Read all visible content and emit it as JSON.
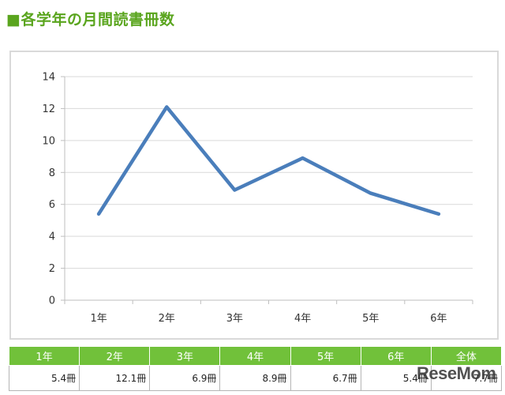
{
  "title": "■各学年の月間読書冊数",
  "colors": {
    "title": "#5aa51e",
    "line": "#4a7ebb",
    "header_bg": "#71c13a",
    "grid": "#d9d9d9",
    "axis": "#bfbfbf"
  },
  "chart_data": {
    "type": "line",
    "title": "",
    "xlabel": "",
    "ylabel": "",
    "categories": [
      "1年",
      "2年",
      "3年",
      "4年",
      "5年",
      "6年"
    ],
    "series": [
      {
        "values": [
          5.4,
          12.1,
          6.9,
          8.9,
          6.7,
          5.4
        ]
      }
    ],
    "ylim": [
      0,
      14
    ],
    "yticks": [
      0,
      2,
      4,
      6,
      8,
      10,
      12,
      14
    ],
    "grid": true,
    "legend": "none"
  },
  "table": {
    "headers": [
      "1年",
      "2年",
      "3年",
      "4年",
      "5年",
      "6年",
      "全体"
    ],
    "values": [
      "5.4冊",
      "12.1冊",
      "6.9冊",
      "8.9冊",
      "6.7冊",
      "5.4冊",
      "7.7冊"
    ]
  },
  "watermark": "ReseMom"
}
